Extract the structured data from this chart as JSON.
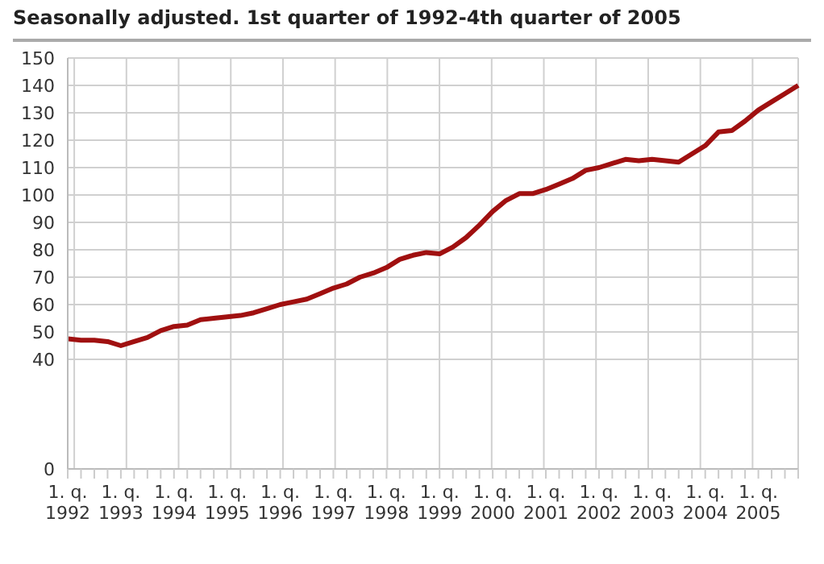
{
  "chart_data": {
    "type": "line",
    "title": "Seasonally adjusted. 1st quarter of 1992-4th quarter of 2005",
    "categories": [
      "1. q.\n1992",
      null,
      null,
      null,
      "1. q.\n1993",
      null,
      null,
      null,
      "1. q.\n1994",
      null,
      null,
      null,
      "1. q.\n1995",
      null,
      null,
      null,
      "1. q.\n1996",
      null,
      null,
      null,
      "1. q.\n1997",
      null,
      null,
      null,
      "1. q.\n1998",
      null,
      null,
      null,
      "1. q.\n1999",
      null,
      null,
      null,
      "1. q.\n2000",
      null,
      null,
      null,
      "1. q.\n2001",
      null,
      null,
      null,
      "1. q.\n2002",
      null,
      null,
      null,
      "1. q.\n2003",
      null,
      null,
      null,
      "1. q.\n2004",
      null,
      null,
      null,
      "1. q.\n2005",
      null,
      null,
      null
    ],
    "series": [
      {
        "color": "#a01010",
        "values": [
          47.5,
          47,
          47,
          46.5,
          45,
          46.5,
          48,
          50.5,
          52,
          52.5,
          54.5,
          55,
          55.5,
          56,
          57,
          58.5,
          60,
          61,
          62,
          64,
          66,
          67.5,
          70,
          71.5,
          73.5,
          76.5,
          78,
          79,
          78.5,
          81,
          84.5,
          89,
          94,
          98,
          100.5,
          100.5,
          102,
          104,
          106,
          109,
          110,
          111.5,
          113,
          112.5,
          113,
          112.5,
          112,
          115,
          118,
          123,
          123.5,
          127,
          131,
          134,
          137,
          140
        ]
      }
    ],
    "ylim": [
      0,
      150
    ],
    "yticks": [
      0,
      40,
      50,
      60,
      70,
      80,
      90,
      100,
      110,
      120,
      130,
      140,
      150
    ],
    "grid": true,
    "marker": "none",
    "line_style": "solid",
    "legend": false
  }
}
